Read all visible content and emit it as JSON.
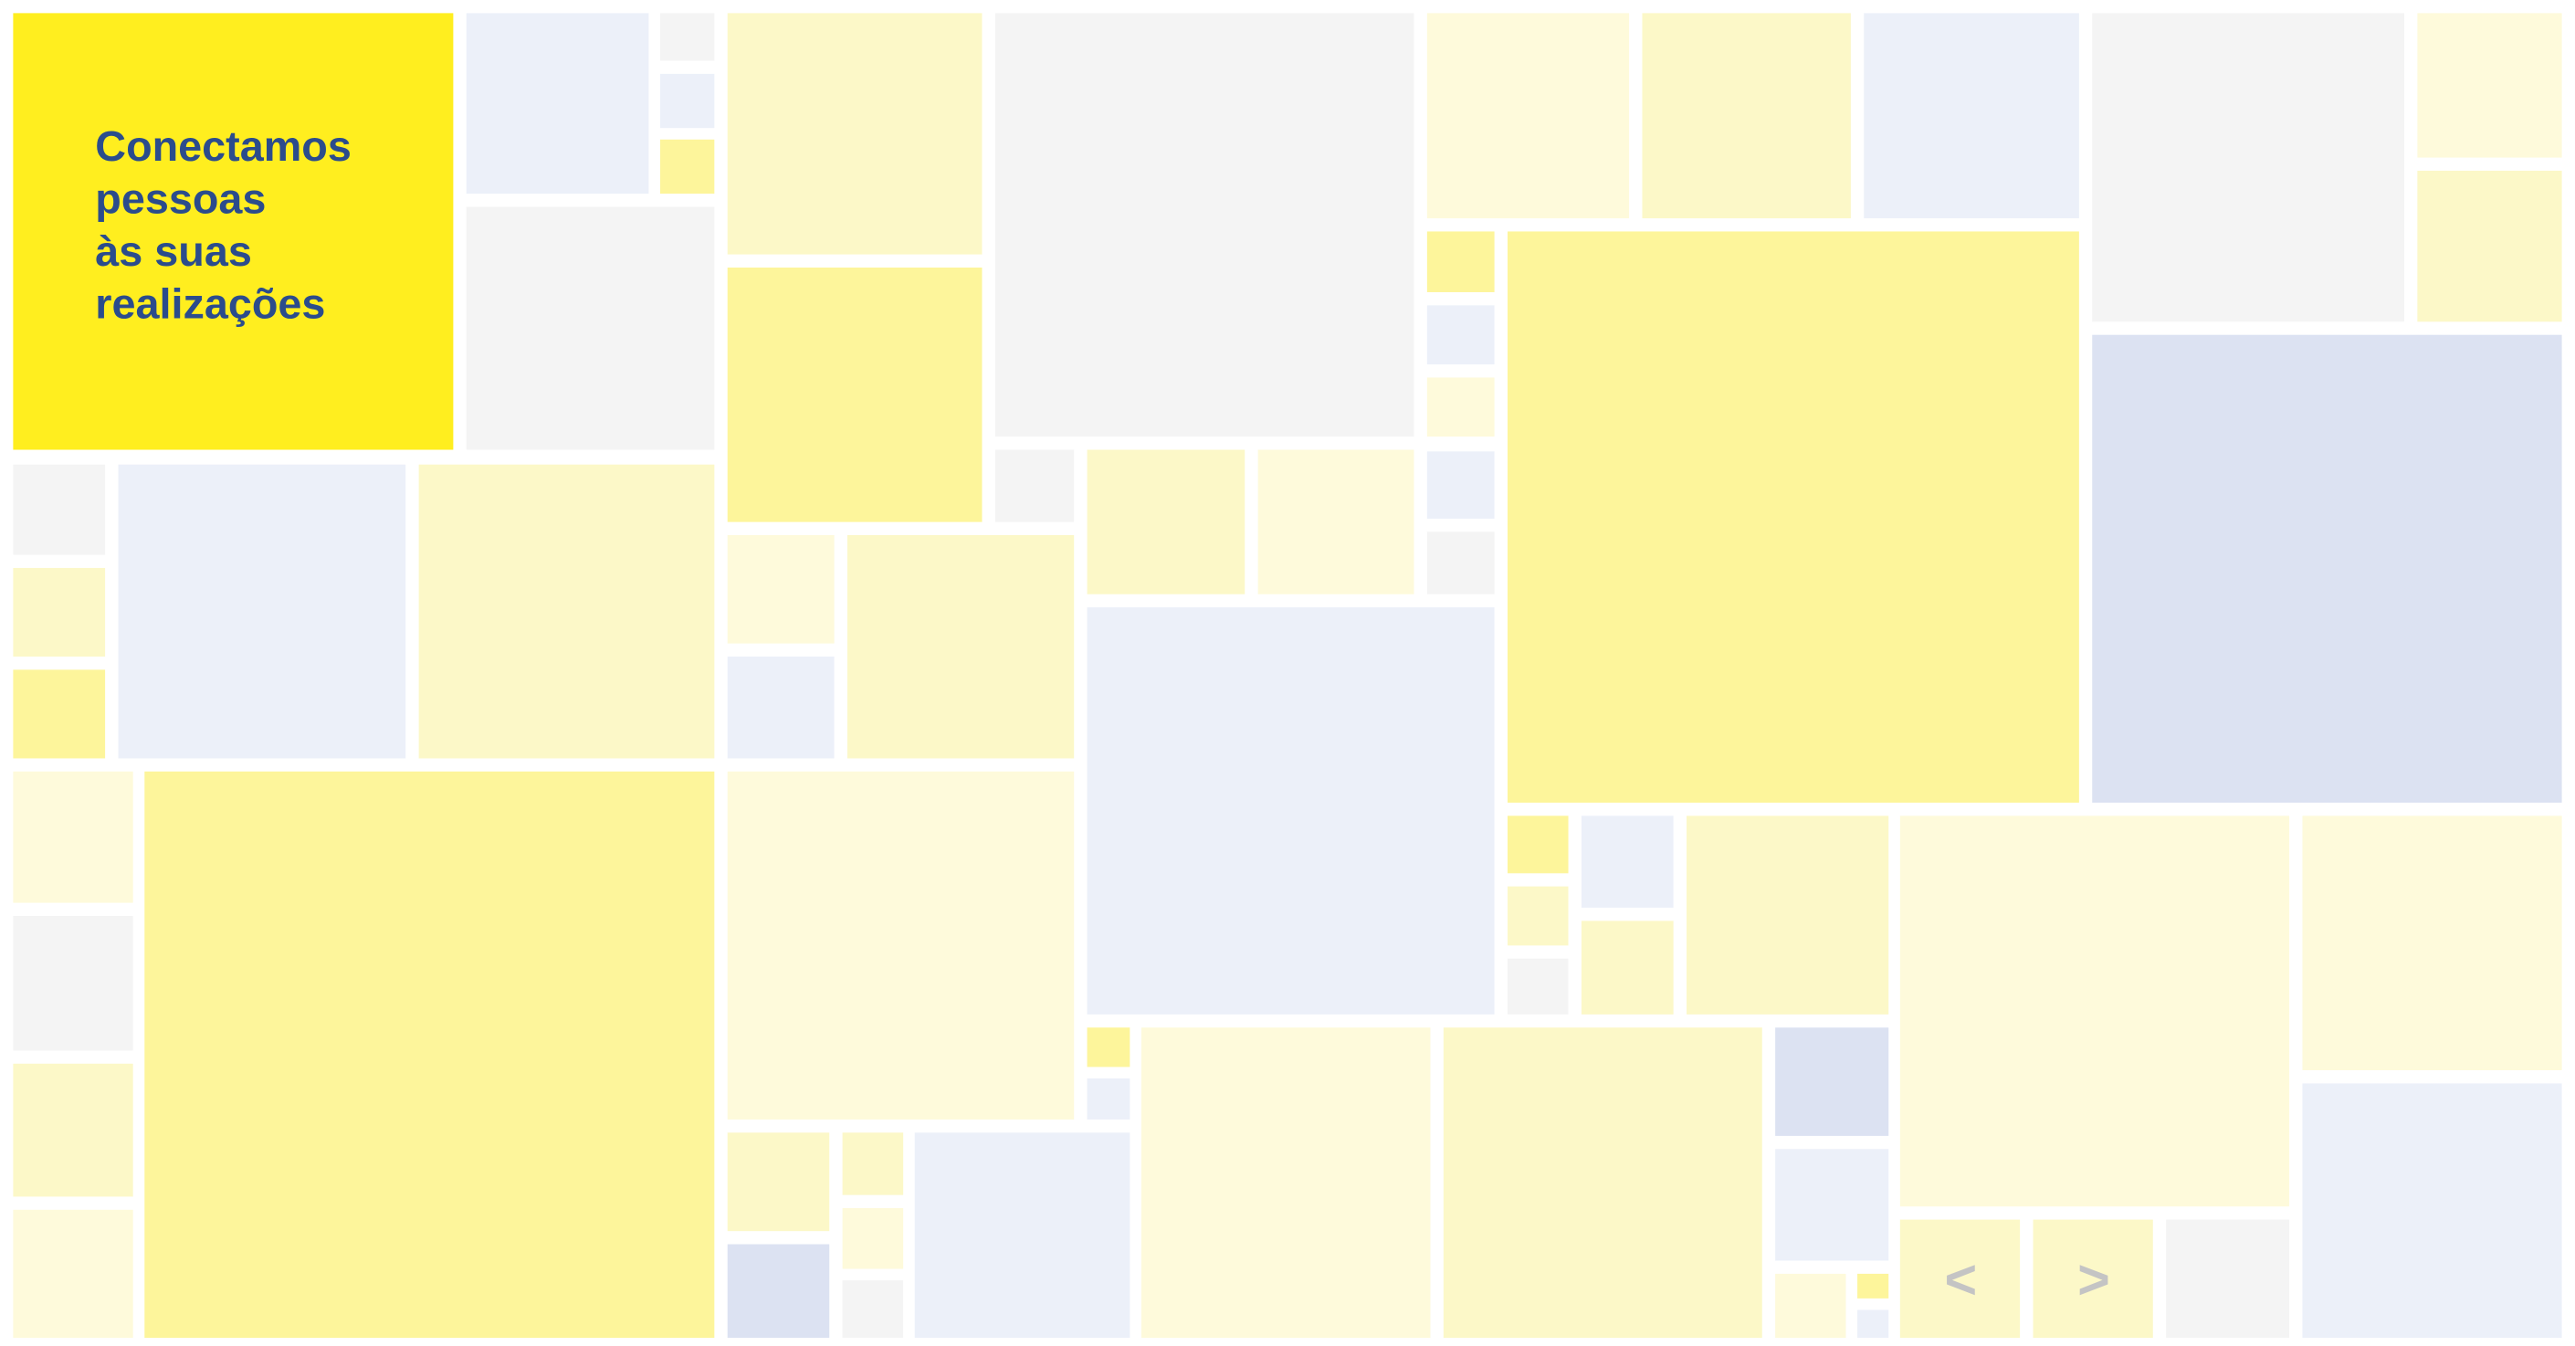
{
  "hero": {
    "lines": [
      "Conectamos",
      "pessoas",
      "às suas",
      "realizações"
    ]
  },
  "carousel": {
    "prev": "<",
    "next": ">"
  }
}
